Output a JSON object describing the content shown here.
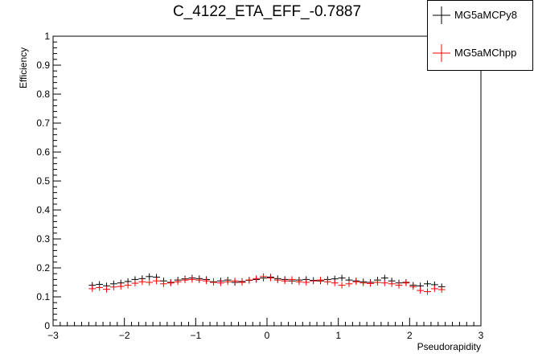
{
  "chart_data": {
    "type": "scatter",
    "title": "C_4122_ETA_EFF_-0.7887",
    "xlabel": "Pseudorapidity",
    "ylabel": "Efficiency",
    "xlim": [
      -3,
      3
    ],
    "ylim": [
      0,
      1
    ],
    "xticks": [
      "−3",
      "−2",
      "−1",
      "0",
      "1",
      "2",
      "3"
    ],
    "yticks": [
      "0",
      "0.1",
      "0.2",
      "0.3",
      "0.4",
      "0.5",
      "0.6",
      "0.7",
      "0.8",
      "0.9",
      "1"
    ],
    "grid": false,
    "legend_position": "top-right",
    "series": [
      {
        "name": "MG5aMCPy8",
        "color": "#000000",
        "x": [
          -2.45,
          -2.35,
          -2.25,
          -2.15,
          -2.05,
          -1.95,
          -1.85,
          -1.75,
          -1.65,
          -1.55,
          -1.45,
          -1.35,
          -1.25,
          -1.15,
          -1.05,
          -0.95,
          -0.85,
          -0.75,
          -0.65,
          -0.55,
          -0.45,
          -0.35,
          -0.25,
          -0.15,
          -0.05,
          0.05,
          0.15,
          0.25,
          0.35,
          0.45,
          0.55,
          0.65,
          0.75,
          0.85,
          0.95,
          1.05,
          1.15,
          1.25,
          1.35,
          1.45,
          1.55,
          1.65,
          1.75,
          1.85,
          1.95,
          2.05,
          2.15,
          2.25,
          2.35,
          2.45
        ],
        "y": [
          0.14,
          0.143,
          0.138,
          0.145,
          0.148,
          0.153,
          0.16,
          0.163,
          0.17,
          0.168,
          0.155,
          0.15,
          0.158,
          0.162,
          0.165,
          0.163,
          0.16,
          0.152,
          0.155,
          0.158,
          0.15,
          0.153,
          0.157,
          0.16,
          0.165,
          0.168,
          0.163,
          0.16,
          0.155,
          0.158,
          0.16,
          0.157,
          0.155,
          0.16,
          0.162,
          0.165,
          0.158,
          0.155,
          0.152,
          0.15,
          0.158,
          0.165,
          0.155,
          0.148,
          0.15,
          0.14,
          0.138,
          0.145,
          0.142,
          0.135
        ]
      },
      {
        "name": "MG5aMChpp",
        "color": "#ff0000",
        "x": [
          -2.45,
          -2.35,
          -2.25,
          -2.15,
          -2.05,
          -1.95,
          -1.85,
          -1.75,
          -1.65,
          -1.55,
          -1.45,
          -1.35,
          -1.25,
          -1.15,
          -1.05,
          -0.95,
          -0.85,
          -0.75,
          -0.65,
          -0.55,
          -0.45,
          -0.35,
          -0.25,
          -0.15,
          -0.05,
          0.05,
          0.15,
          0.25,
          0.35,
          0.45,
          0.55,
          0.65,
          0.75,
          0.85,
          0.95,
          1.05,
          1.15,
          1.25,
          1.35,
          1.45,
          1.55,
          1.65,
          1.75,
          1.85,
          1.95,
          2.05,
          2.15,
          2.25,
          2.35,
          2.45
        ],
        "y": [
          0.128,
          0.132,
          0.126,
          0.134,
          0.136,
          0.14,
          0.147,
          0.152,
          0.15,
          0.155,
          0.145,
          0.148,
          0.152,
          0.158,
          0.16,
          0.158,
          0.155,
          0.15,
          0.148,
          0.152,
          0.155,
          0.15,
          0.158,
          0.163,
          0.17,
          0.165,
          0.158,
          0.155,
          0.16,
          0.152,
          0.15,
          0.155,
          0.158,
          0.152,
          0.148,
          0.14,
          0.145,
          0.152,
          0.148,
          0.146,
          0.15,
          0.148,
          0.145,
          0.14,
          0.148,
          0.135,
          0.122,
          0.118,
          0.128,
          0.125
        ]
      }
    ]
  }
}
